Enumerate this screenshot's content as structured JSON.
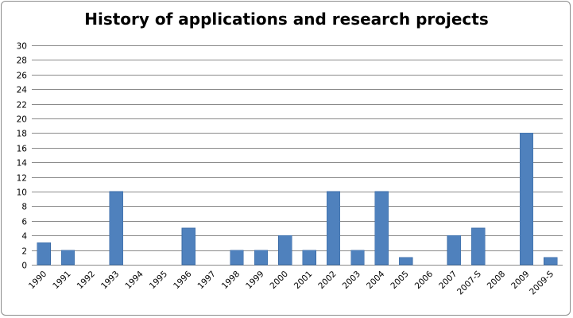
{
  "chart_data": {
    "type": "bar",
    "title": "History of applications and research projects",
    "xlabel": "",
    "ylabel": "",
    "categories": [
      "1990",
      "1991",
      "1992",
      "1993",
      "1994",
      "1995",
      "1996",
      "1997",
      "1998",
      "1999",
      "2000",
      "2001",
      "2002",
      "2003",
      "2004",
      "2005",
      "2006",
      "2007",
      "2007-S",
      "2008",
      "2009",
      "2009-S"
    ],
    "values": [
      3,
      2,
      0,
      10,
      0,
      0,
      5,
      0,
      2,
      2,
      4,
      2,
      10,
      2,
      10,
      1,
      0,
      4,
      5,
      0,
      18,
      1
    ],
    "ylim": [
      0,
      30
    ],
    "yticks": [
      0,
      2,
      4,
      6,
      8,
      10,
      12,
      14,
      16,
      18,
      20,
      22,
      24,
      26,
      28,
      30
    ],
    "grid": true,
    "legend": "none",
    "bar_color": "#4f81bd",
    "grid_color": "#8a8a8a"
  }
}
